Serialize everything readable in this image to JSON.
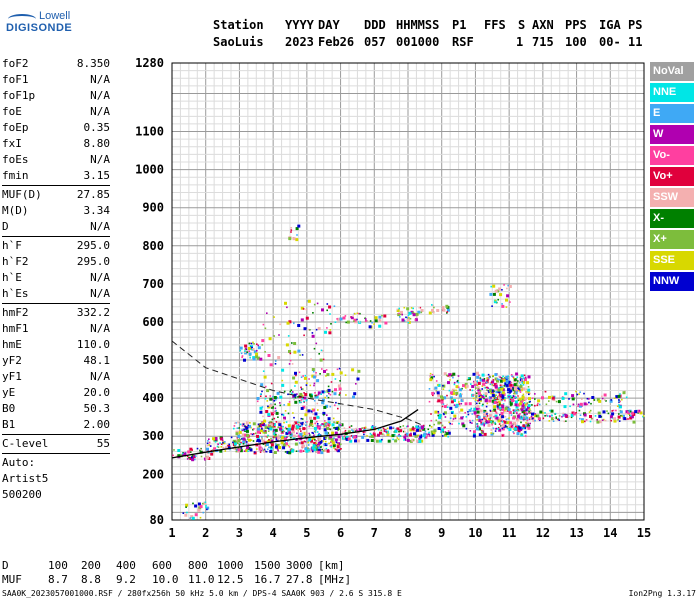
{
  "logo": {
    "line1": "Lowell",
    "line2": "DIGISONDE"
  },
  "header": {
    "labels": [
      "Station",
      "YYYY",
      "DAY",
      "DDD",
      "HHMMSS",
      "P1",
      "FFS",
      "S",
      "AXN",
      "PPS",
      "IGA",
      "PS"
    ],
    "values": [
      "SaoLuis",
      "2023",
      "Feb26",
      "057",
      "001000",
      "RSF",
      "1",
      "715",
      "100",
      "00-",
      "11"
    ]
  },
  "params": [
    {
      "k": "foF2",
      "v": "8.350"
    },
    {
      "k": "foF1",
      "v": "N/A"
    },
    {
      "k": "foF1p",
      "v": "N/A"
    },
    {
      "k": "foE",
      "v": "N/A"
    },
    {
      "k": "foEp",
      "v": "0.35"
    },
    {
      "k": "fxI",
      "v": "8.80"
    },
    {
      "k": "foEs",
      "v": "N/A"
    },
    {
      "k": "fmin",
      "v": "3.15"
    },
    {
      "k": "MUF(D)",
      "v": "27.85"
    },
    {
      "k": "M(D)",
      "v": "3.34"
    },
    {
      "k": "D",
      "v": "N/A"
    },
    {
      "k": "h`F",
      "v": "295.0"
    },
    {
      "k": "h`F2",
      "v": "295.0"
    },
    {
      "k": "h`E",
      "v": "N/A"
    },
    {
      "k": "h`Es",
      "v": "N/A"
    },
    {
      "k": "hmF2",
      "v": "332.2"
    },
    {
      "k": "hmF1",
      "v": "N/A"
    },
    {
      "k": "hmE",
      "v": "110.0"
    },
    {
      "k": "yF2",
      "v": "48.1"
    },
    {
      "k": "yF1",
      "v": "N/A"
    },
    {
      "k": "yE",
      "v": "20.0"
    },
    {
      "k": "B0",
      "v": "50.3"
    },
    {
      "k": "B1",
      "v": "2.00"
    },
    {
      "k": "C-level",
      "v": "55"
    }
  ],
  "auto": {
    "line1": "Auto:",
    "line2": "Artist5",
    "line3": "500200"
  },
  "legend": [
    {
      "label": "NoVal",
      "color": "#a0a0a0"
    },
    {
      "label": "NNE",
      "color": "#00e6e6"
    },
    {
      "label": "E",
      "color": "#3fa9f5"
    },
    {
      "label": "W",
      "color": "#b000b0"
    },
    {
      "label": "Vo-",
      "color": "#ff3fa0"
    },
    {
      "label": "Vo+",
      "color": "#e0003c"
    },
    {
      "label": "SSW",
      "color": "#f4b0b0"
    },
    {
      "label": "X-",
      "color": "#008000"
    },
    {
      "label": "X+",
      "color": "#7dbd3c"
    },
    {
      "label": "SSE",
      "color": "#d8d800"
    },
    {
      "label": "NNW",
      "color": "#0000d0"
    }
  ],
  "bottom": {
    "row1_label": "D",
    "row1_values": [
      "100",
      "200",
      "400",
      "600",
      "800",
      "1000",
      "1500",
      "3000"
    ],
    "row1_unit": "[km]",
    "row2_label": "MUF",
    "row2_values": [
      "8.7",
      "8.8",
      "9.2",
      "10.0",
      "11.0",
      "12.5",
      "16.7",
      "27.8"
    ],
    "row2_unit": "[MHz]"
  },
  "footer": "SAA0K_2023057001000.RSF / 280fx256h 50 kHz 5.0 km / DPS-4 SAA0K 903 / 2.6 S 315.8 E",
  "version": "Ion2Png 1.3.17",
  "chart_data": {
    "type": "scatter",
    "xlim": [
      1,
      15
    ],
    "ylim": [
      80,
      1280
    ],
    "x_ticks": [
      1,
      2,
      3,
      4,
      5,
      6,
      7,
      8,
      9,
      10,
      11,
      12,
      13,
      14,
      15
    ],
    "y_ticks": [
      80,
      200,
      300,
      400,
      500,
      600,
      700,
      800,
      900,
      1000,
      1100,
      1280
    ],
    "grid": true,
    "traced_profile": {
      "x": [
        1.0,
        2.0,
        3.0,
        4.0,
        5.0,
        6.0,
        7.0,
        7.8,
        8.3
      ],
      "y": [
        243,
        258,
        272,
        285,
        296,
        305,
        318,
        340,
        370
      ]
    },
    "dashed_curve": {
      "x": [
        1.0,
        2.0,
        3.0,
        4.0,
        5.0,
        6.0,
        7.0,
        8.0,
        8.4
      ],
      "y": [
        550,
        480,
        450,
        420,
        400,
        385,
        370,
        345,
        330
      ]
    },
    "echo_clusters": [
      {
        "x": [
          1.0,
          2.2
        ],
        "y": [
          240,
          270
        ],
        "density": 0.6
      },
      {
        "x": [
          2.0,
          3.0
        ],
        "y": [
          260,
          300
        ],
        "density": 0.7
      },
      {
        "x": [
          2.8,
          6.0
        ],
        "y": [
          260,
          340
        ],
        "density": 0.9
      },
      {
        "x": [
          6.0,
          8.6
        ],
        "y": [
          290,
          330
        ],
        "density": 0.8
      },
      {
        "x": [
          3.5,
          6.0
        ],
        "y": [
          320,
          420
        ],
        "density": 0.3
      },
      {
        "x": [
          4.5,
          6.5
        ],
        "y": [
          400,
          480
        ],
        "density": 0.15
      },
      {
        "x": [
          3.0,
          3.6
        ],
        "y": [
          500,
          550
        ],
        "density": 0.6
      },
      {
        "x": [
          3.6,
          5.8
        ],
        "y": [
          400,
          660
        ],
        "density": 0.08
      },
      {
        "x": [
          5.8,
          6.6
        ],
        "y": [
          600,
          625
        ],
        "density": 0.5
      },
      {
        "x": [
          6.7,
          7.3
        ],
        "y": [
          590,
          620
        ],
        "density": 0.5
      },
      {
        "x": [
          7.6,
          8.4
        ],
        "y": [
          600,
          640
        ],
        "density": 0.5
      },
      {
        "x": [
          8.6,
          9.2
        ],
        "y": [
          625,
          650
        ],
        "density": 0.5
      },
      {
        "x": [
          10.4,
          11.0
        ],
        "y": [
          640,
          700
        ],
        "density": 0.3
      },
      {
        "x": [
          4.4,
          4.8
        ],
        "y": [
          820,
          860
        ],
        "density": 0.3
      },
      {
        "x": [
          8.6,
          11.5
        ],
        "y": [
          300,
          470
        ],
        "density": 0.35
      },
      {
        "x": [
          10.0,
          11.6
        ],
        "y": [
          320,
          460
        ],
        "density": 0.8
      },
      {
        "x": [
          11.6,
          15.0
        ],
        "y": [
          340,
          370
        ],
        "density": 0.6
      },
      {
        "x": [
          11.6,
          14.5
        ],
        "y": [
          380,
          420
        ],
        "density": 0.3
      },
      {
        "x": [
          1.3,
          2.1
        ],
        "y": [
          85,
          130
        ],
        "density": 0.3
      }
    ]
  }
}
